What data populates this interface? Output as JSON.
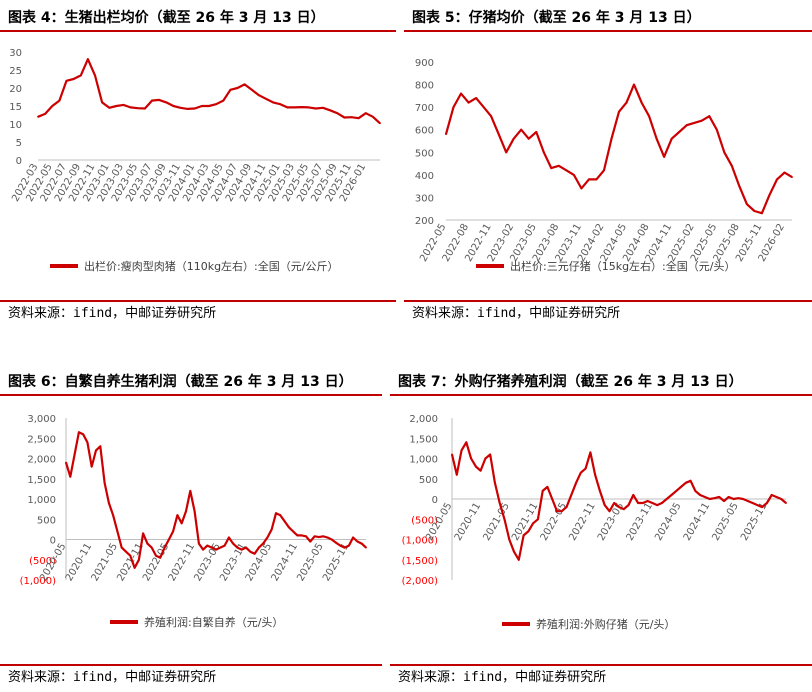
{
  "panels": [
    {
      "title": "图表 4：生猪出栏均价（截至 26 年 3 月 13 日）",
      "source": "资料来源：ifind，中邮证券研究所",
      "legend": "出栏价:瘦肉型肉猪（110kg左右）:全国（元/公斤）"
    },
    {
      "title": "图表 5：仔猪均价（截至 26 年 3 月 13 日）",
      "source": "资料来源：ifind，中邮证券研究所",
      "legend": "出栏价:三元仔猪（15kg左右）:全国（元/头）"
    },
    {
      "title": "图表 6：自繁自养生猪利润（截至 26 年 3 月 13 日）",
      "source": "资料来源：ifind，中邮证券研究所",
      "legend": "养殖利润:自繁自养（元/头）"
    },
    {
      "title": "图表 7：外购仔猪养殖利润（截至 26 年 3 月 13 日）",
      "source": "资料来源：ifind，中邮证券研究所",
      "legend": "养殖利润:外购仔猪（元/头）"
    }
  ],
  "colors": {
    "line": "#cc0000",
    "accent": "#c00000",
    "axis": "#bfbfbf",
    "negative_label": "#ff0000"
  },
  "chart_data": [
    {
      "type": "line",
      "title": "图表 4：生猪出栏均价（截至 26 年 3 月 13 日）",
      "series": [
        {
          "name": "出栏价:瘦肉型肉猪（110kg左右）:全国（元/公斤）"
        }
      ],
      "x_tick_labels": [
        "2022-03",
        "2022-05",
        "2022-07",
        "2022-09",
        "2022-11",
        "2023-01",
        "2023-03",
        "2023-05",
        "2023-07",
        "2023-09",
        "2023-11",
        "2024-01",
        "2024-03",
        "2024-05",
        "2024-07",
        "2024-09",
        "2024-11",
        "2025-01",
        "2025-03",
        "2025-05",
        "2025-07",
        "2025-09",
        "2025-11",
        "2026-01"
      ],
      "y_tick_labels": [
        "0",
        "5",
        "10",
        "15",
        "20",
        "25",
        "30"
      ],
      "ylim": [
        0,
        30
      ],
      "x_range": [
        "2022-03",
        "2026-03"
      ],
      "points": [
        [
          "2022-03",
          12.0
        ],
        [
          "2022-04",
          12.8
        ],
        [
          "2022-05",
          15.0
        ],
        [
          "2022-06",
          16.5
        ],
        [
          "2022-07",
          22.0
        ],
        [
          "2022-08",
          22.5
        ],
        [
          "2022-09",
          23.5
        ],
        [
          "2022-10",
          28.0
        ],
        [
          "2022-11",
          23.5
        ],
        [
          "2022-12",
          16.0
        ],
        [
          "2023-01",
          14.5
        ],
        [
          "2023-02",
          15.0
        ],
        [
          "2023-03",
          15.3
        ],
        [
          "2023-04",
          14.6
        ],
        [
          "2023-05",
          14.4
        ],
        [
          "2023-06",
          14.3
        ],
        [
          "2023-07",
          16.5
        ],
        [
          "2023-08",
          16.7
        ],
        [
          "2023-09",
          16.0
        ],
        [
          "2023-10",
          15.0
        ],
        [
          "2023-11",
          14.5
        ],
        [
          "2023-12",
          14.2
        ],
        [
          "2024-01",
          14.3
        ],
        [
          "2024-02",
          15.0
        ],
        [
          "2024-03",
          15.0
        ],
        [
          "2024-04",
          15.5
        ],
        [
          "2024-05",
          16.5
        ],
        [
          "2024-06",
          19.5
        ],
        [
          "2024-07",
          20.0
        ],
        [
          "2024-08",
          21.0
        ],
        [
          "2024-09",
          19.5
        ],
        [
          "2024-10",
          18.0
        ],
        [
          "2024-11",
          17.0
        ],
        [
          "2024-12",
          16.0
        ],
        [
          "2025-01",
          15.5
        ],
        [
          "2025-02",
          14.6
        ],
        [
          "2025-03",
          14.6
        ],
        [
          "2025-04",
          14.7
        ],
        [
          "2025-05",
          14.6
        ],
        [
          "2025-06",
          14.3
        ],
        [
          "2025-07",
          14.5
        ],
        [
          "2025-08",
          13.8
        ],
        [
          "2025-09",
          13.0
        ],
        [
          "2025-10",
          11.8
        ],
        [
          "2025-11",
          11.9
        ],
        [
          "2025-12",
          11.6
        ],
        [
          "2026-01",
          13.0
        ],
        [
          "2026-02",
          12.0
        ],
        [
          "2026-03",
          10.2
        ]
      ]
    },
    {
      "type": "line",
      "title": "图表 5：仔猪均价（截至 26 年 3 月 13 日）",
      "series": [
        {
          "name": "出栏价:三元仔猪（15kg左右）:全国（元/头）"
        }
      ],
      "x_tick_labels": [
        "2022-05",
        "2022-08",
        "2022-11",
        "2023-02",
        "2023-05",
        "2023-08",
        "2023-11",
        "2024-02",
        "2024-05",
        "2024-08",
        "2024-11",
        "2025-02",
        "2025-05",
        "2025-08",
        "2025-11",
        "2026-02"
      ],
      "y_tick_labels": [
        "200",
        "300",
        "400",
        "500",
        "600",
        "700",
        "800",
        "900"
      ],
      "ylim": [
        200,
        900
      ],
      "x_range": [
        "2022-05",
        "2026-03"
      ],
      "points": [
        [
          "2022-05",
          580
        ],
        [
          "2022-06",
          700
        ],
        [
          "2022-07",
          760
        ],
        [
          "2022-08",
          720
        ],
        [
          "2022-09",
          740
        ],
        [
          "2022-10",
          700
        ],
        [
          "2022-11",
          660
        ],
        [
          "2022-12",
          580
        ],
        [
          "2023-01",
          500
        ],
        [
          "2023-02",
          560
        ],
        [
          "2023-03",
          600
        ],
        [
          "2023-04",
          560
        ],
        [
          "2023-05",
          590
        ],
        [
          "2023-06",
          500
        ],
        [
          "2023-07",
          430
        ],
        [
          "2023-08",
          440
        ],
        [
          "2023-09",
          420
        ],
        [
          "2023-10",
          400
        ],
        [
          "2023-11",
          340
        ],
        [
          "2023-12",
          380
        ],
        [
          "2024-01",
          380
        ],
        [
          "2024-02",
          420
        ],
        [
          "2024-03",
          560
        ],
        [
          "2024-04",
          680
        ],
        [
          "2024-05",
          720
        ],
        [
          "2024-06",
          800
        ],
        [
          "2024-07",
          720
        ],
        [
          "2024-08",
          660
        ],
        [
          "2024-09",
          560
        ],
        [
          "2024-10",
          480
        ],
        [
          "2024-11",
          560
        ],
        [
          "2024-12",
          590
        ],
        [
          "2025-01",
          620
        ],
        [
          "2025-02",
          630
        ],
        [
          "2025-03",
          640
        ],
        [
          "2025-04",
          660
        ],
        [
          "2025-05",
          600
        ],
        [
          "2025-06",
          500
        ],
        [
          "2025-07",
          440
        ],
        [
          "2025-08",
          350
        ],
        [
          "2025-09",
          270
        ],
        [
          "2025-10",
          240
        ],
        [
          "2025-11",
          230
        ],
        [
          "2025-12",
          310
        ],
        [
          "2026-01",
          380
        ],
        [
          "2026-02",
          410
        ],
        [
          "2026-03",
          390
        ]
      ]
    },
    {
      "type": "line",
      "title": "图表 6：自繁自养生猪利润（截至 26 年 3 月 13 日）",
      "series": [
        {
          "name": "养殖利润:自繁自养（元/头）"
        }
      ],
      "x_tick_labels": [
        "2020-05",
        "2020-11",
        "2021-05",
        "2021-11",
        "2022-05",
        "2022-11",
        "2023-05",
        "2023-11",
        "2024-05",
        "2024-11",
        "2025-05",
        "2025-11"
      ],
      "y_tick_labels": [
        "(1,000)",
        "(500)",
        "0",
        "500",
        "1,000",
        "1,500",
        "2,000",
        "2,500",
        "3,000"
      ],
      "ylim": [
        -1000,
        3000
      ],
      "x_range": [
        "2020-05",
        "2026-03"
      ],
      "points": [
        [
          "2020-05",
          1900
        ],
        [
          "2020-06",
          1550
        ],
        [
          "2020-07",
          2100
        ],
        [
          "2020-08",
          2650
        ],
        [
          "2020-09",
          2600
        ],
        [
          "2020-10",
          2400
        ],
        [
          "2020-11",
          1800
        ],
        [
          "2020-12",
          2200
        ],
        [
          "2021-01",
          2300
        ],
        [
          "2021-02",
          1400
        ],
        [
          "2021-03",
          900
        ],
        [
          "2021-04",
          600
        ],
        [
          "2021-05",
          200
        ],
        [
          "2021-06",
          -200
        ],
        [
          "2021-07",
          -300
        ],
        [
          "2021-08",
          -400
        ],
        [
          "2021-09",
          -700
        ],
        [
          "2021-10",
          -500
        ],
        [
          "2021-11",
          150
        ],
        [
          "2021-12",
          -100
        ],
        [
          "2022-01",
          -200
        ],
        [
          "2022-02",
          -400
        ],
        [
          "2022-03",
          -450
        ],
        [
          "2022-04",
          -200
        ],
        [
          "2022-05",
          0
        ],
        [
          "2022-06",
          200
        ],
        [
          "2022-07",
          600
        ],
        [
          "2022-08",
          400
        ],
        [
          "2022-09",
          700
        ],
        [
          "2022-10",
          1200
        ],
        [
          "2022-11",
          700
        ],
        [
          "2022-12",
          -100
        ],
        [
          "2023-01",
          -250
        ],
        [
          "2023-02",
          -150
        ],
        [
          "2023-03",
          -200
        ],
        [
          "2023-04",
          -250
        ],
        [
          "2023-05",
          -200
        ],
        [
          "2023-06",
          -150
        ],
        [
          "2023-07",
          50
        ],
        [
          "2023-08",
          -100
        ],
        [
          "2023-09",
          -200
        ],
        [
          "2023-10",
          -250
        ],
        [
          "2023-11",
          -200
        ],
        [
          "2023-12",
          -300
        ],
        [
          "2024-01",
          -350
        ],
        [
          "2024-02",
          -200
        ],
        [
          "2024-03",
          -100
        ],
        [
          "2024-04",
          50
        ],
        [
          "2024-05",
          250
        ],
        [
          "2024-06",
          650
        ],
        [
          "2024-07",
          600
        ],
        [
          "2024-08",
          450
        ],
        [
          "2024-09",
          300
        ],
        [
          "2024-10",
          200
        ],
        [
          "2024-11",
          100
        ],
        [
          "2024-12",
          100
        ],
        [
          "2025-01",
          80
        ],
        [
          "2025-02",
          -50
        ],
        [
          "2025-03",
          80
        ],
        [
          "2025-04",
          60
        ],
        [
          "2025-05",
          80
        ],
        [
          "2025-06",
          50
        ],
        [
          "2025-07",
          0
        ],
        [
          "2025-08",
          -80
        ],
        [
          "2025-09",
          -150
        ],
        [
          "2025-10",
          -200
        ],
        [
          "2025-11",
          -150
        ],
        [
          "2025-12",
          50
        ],
        [
          "2026-01",
          -50
        ],
        [
          "2026-02",
          -100
        ],
        [
          "2026-03",
          -200
        ]
      ]
    },
    {
      "type": "line",
      "title": "图表 7：外购仔猪养殖利润（截至 26 年 3 月 13 日）",
      "series": [
        {
          "name": "养殖利润:外购仔猪（元/头）"
        }
      ],
      "x_tick_labels": [
        "2020-05",
        "2020-11",
        "2021-05",
        "2021-11",
        "2022-05",
        "2022-11",
        "2023-05",
        "2023-11",
        "2024-05",
        "2024-11",
        "2025-05",
        "2025-11"
      ],
      "y_tick_labels": [
        "(2,000)",
        "(1,500)",
        "(1,000)",
        "(500)",
        "0",
        "500",
        "1,000",
        "1,500",
        "2,000"
      ],
      "ylim": [
        -2000,
        2000
      ],
      "x_range": [
        "2020-05",
        "2026-03"
      ],
      "points": [
        [
          "2020-05",
          1100
        ],
        [
          "2020-06",
          600
        ],
        [
          "2020-07",
          1200
        ],
        [
          "2020-08",
          1400
        ],
        [
          "2020-09",
          1000
        ],
        [
          "2020-10",
          800
        ],
        [
          "2020-11",
          700
        ],
        [
          "2020-12",
          1000
        ],
        [
          "2021-01",
          1100
        ],
        [
          "2021-02",
          400
        ],
        [
          "2021-03",
          -100
        ],
        [
          "2021-04",
          -500
        ],
        [
          "2021-05",
          -1000
        ],
        [
          "2021-06",
          -1300
        ],
        [
          "2021-07",
          -1500
        ],
        [
          "2021-08",
          -900
        ],
        [
          "2021-09",
          -800
        ],
        [
          "2021-10",
          -600
        ],
        [
          "2021-11",
          -500
        ],
        [
          "2021-12",
          200
        ],
        [
          "2022-01",
          300
        ],
        [
          "2022-02",
          0
        ],
        [
          "2022-03",
          -300
        ],
        [
          "2022-04",
          -300
        ],
        [
          "2022-05",
          -200
        ],
        [
          "2022-06",
          100
        ],
        [
          "2022-07",
          400
        ],
        [
          "2022-08",
          650
        ],
        [
          "2022-09",
          750
        ],
        [
          "2022-10",
          1150
        ],
        [
          "2022-11",
          600
        ],
        [
          "2022-12",
          200
        ],
        [
          "2023-01",
          -150
        ],
        [
          "2023-02",
          -300
        ],
        [
          "2023-03",
          -100
        ],
        [
          "2023-04",
          -200
        ],
        [
          "2023-05",
          -250
        ],
        [
          "2023-06",
          -150
        ],
        [
          "2023-07",
          100
        ],
        [
          "2023-08",
          -100
        ],
        [
          "2023-09",
          -100
        ],
        [
          "2023-10",
          -50
        ],
        [
          "2023-11",
          -100
        ],
        [
          "2023-12",
          -150
        ],
        [
          "2024-01",
          -100
        ],
        [
          "2024-02",
          0
        ],
        [
          "2024-03",
          100
        ],
        [
          "2024-04",
          200
        ],
        [
          "2024-05",
          300
        ],
        [
          "2024-06",
          400
        ],
        [
          "2024-07",
          450
        ],
        [
          "2024-08",
          200
        ],
        [
          "2024-09",
          100
        ],
        [
          "2024-10",
          50
        ],
        [
          "2024-11",
          0
        ],
        [
          "2024-12",
          20
        ],
        [
          "2025-01",
          50
        ],
        [
          "2025-02",
          -50
        ],
        [
          "2025-03",
          50
        ],
        [
          "2025-04",
          0
        ],
        [
          "2025-05",
          20
        ],
        [
          "2025-06",
          0
        ],
        [
          "2025-07",
          -50
        ],
        [
          "2025-08",
          -100
        ],
        [
          "2025-09",
          -150
        ],
        [
          "2025-10",
          -200
        ],
        [
          "2025-11",
          -100
        ],
        [
          "2025-12",
          100
        ],
        [
          "2026-01",
          50
        ],
        [
          "2026-02",
          0
        ],
        [
          "2026-03",
          -100
        ]
      ]
    }
  ]
}
